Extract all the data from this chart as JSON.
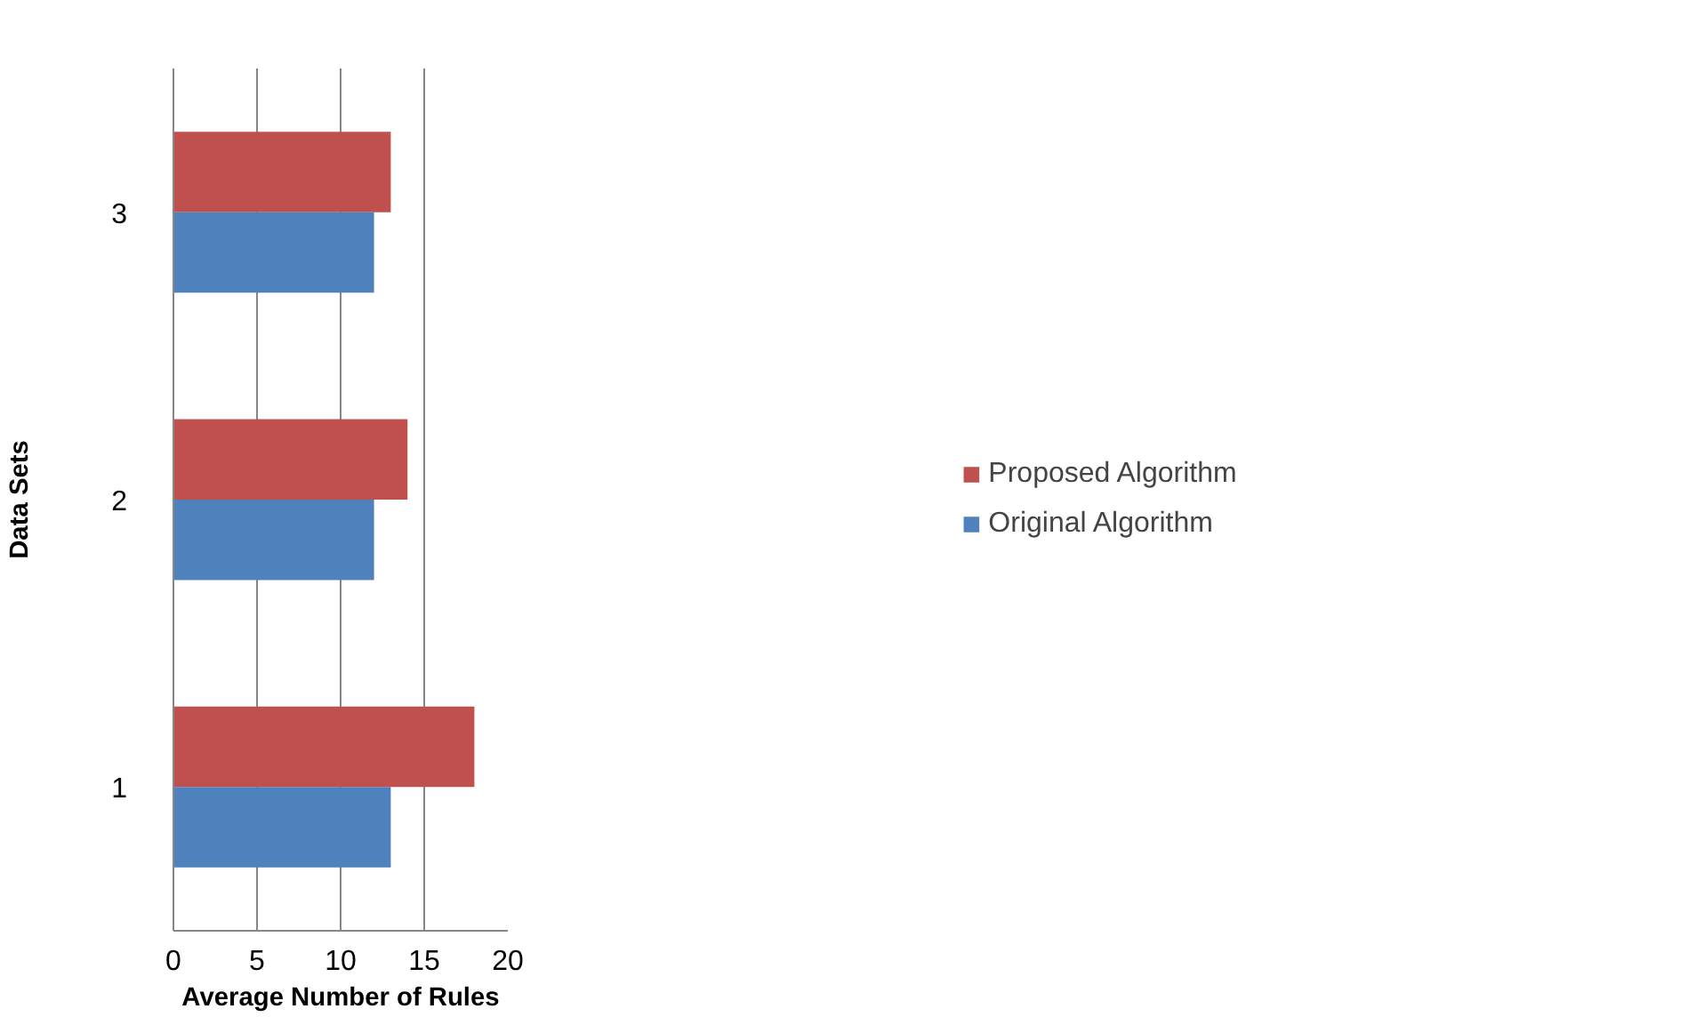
{
  "chart_data": {
    "type": "bar",
    "orientation": "horizontal",
    "xlabel": "Average Number of Rules",
    "ylabel": "Data Sets",
    "categories": [
      "3",
      "2",
      "1"
    ],
    "series": [
      {
        "name": "Proposed Algorithm",
        "color": "#c0504d",
        "values": [
          13,
          14,
          18
        ]
      },
      {
        "name": "Original Algorithm",
        "color": "#4f81bd",
        "values": [
          12,
          12,
          13
        ]
      }
    ],
    "xlim": [
      0,
      20
    ],
    "xticks": [
      0,
      5,
      10,
      15,
      20
    ],
    "grid": "x",
    "legend": "right"
  }
}
